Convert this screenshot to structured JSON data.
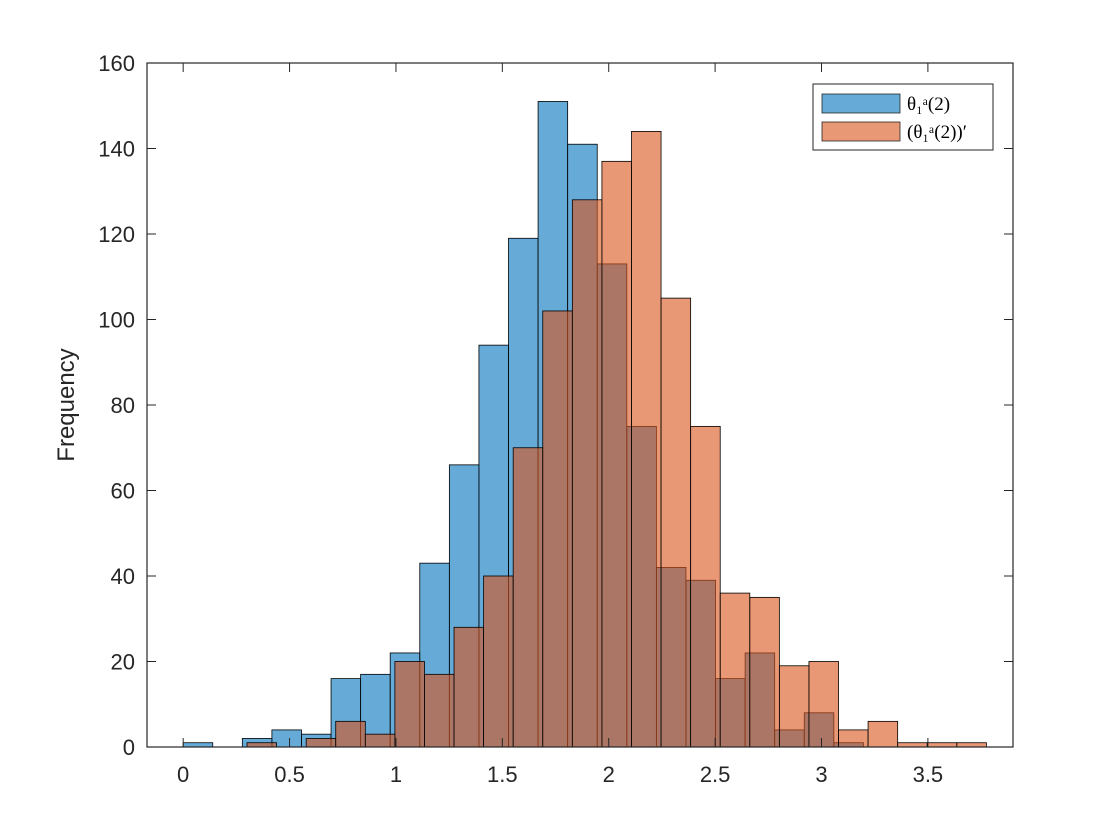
{
  "chart_data": {
    "type": "bar",
    "title": "",
    "xlabel": "",
    "ylabel": "Frequency",
    "xlim": [
      -0.17,
      3.9
    ],
    "ylim": [
      0,
      160
    ],
    "xticks": [
      0,
      0.5,
      1,
      1.5,
      2,
      2.5,
      3,
      3.5
    ],
    "xtick_labels": [
      "0",
      "0.5",
      "1",
      "1.5",
      "2",
      "2.5",
      "3",
      "3.5"
    ],
    "yticks": [
      0,
      20,
      40,
      60,
      80,
      100,
      120,
      140,
      160
    ],
    "ytick_labels": [
      "0",
      "20",
      "40",
      "60",
      "80",
      "100",
      "120",
      "140",
      "160"
    ],
    "grid": false,
    "legend_position": "top-right",
    "series": [
      {
        "name": "θ₁ᵃ(2)",
        "color": "#0072BD",
        "bin_edges": [
          0,
          0.139,
          0.278,
          0.417,
          0.556,
          0.695,
          0.834,
          0.973,
          1.112,
          1.251,
          1.39,
          1.529,
          1.668,
          1.807,
          1.946,
          2.085,
          2.224,
          2.363,
          2.502,
          2.641,
          2.78,
          2.919,
          3.058,
          3.197
        ],
        "values": [
          1,
          0,
          2,
          4,
          3,
          16,
          17,
          22,
          43,
          66,
          94,
          119,
          151,
          141,
          113,
          75,
          42,
          39,
          16,
          22,
          4,
          8,
          1
        ]
      },
      {
        "name": "(θ₁ᵃ(2))′",
        "color": "#D95319",
        "bin_edges": [
          0.3,
          0.439,
          0.578,
          0.717,
          0.856,
          0.995,
          1.134,
          1.273,
          1.412,
          1.551,
          1.69,
          1.829,
          1.968,
          2.107,
          2.246,
          2.385,
          2.524,
          2.663,
          2.802,
          2.941,
          3.08,
          3.219,
          3.358,
          3.497,
          3.636,
          3.775
        ],
        "values": [
          1,
          0,
          2,
          6,
          3,
          20,
          17,
          28,
          40,
          70,
          102,
          128,
          137,
          144,
          105,
          75,
          36,
          35,
          19,
          20,
          4,
          6,
          1,
          1,
          1
        ]
      }
    ]
  }
}
